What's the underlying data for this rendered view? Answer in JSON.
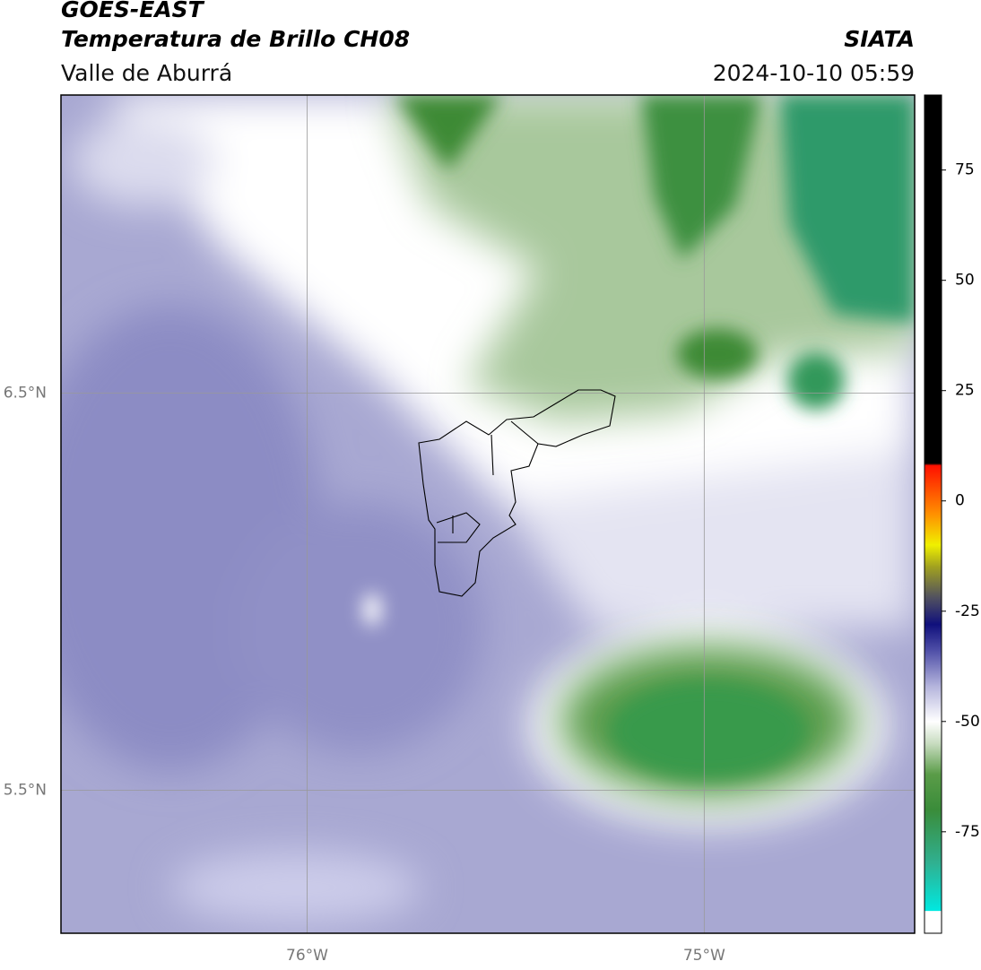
{
  "header": {
    "title": "GOES-EAST",
    "subtitle": "Temperatura de Brillo CH08",
    "region": "Valle de Aburrá",
    "source": "SIATA",
    "datetime": "2024-10-10 05:59"
  },
  "map": {
    "xlim": [
      -76.62,
      -74.47
    ],
    "ylim": [
      5.14,
      7.25
    ],
    "xticks": [
      {
        "value": -76,
        "label": "76°W"
      },
      {
        "value": -75,
        "label": "75°W"
      }
    ],
    "yticks": [
      {
        "value": 6.5,
        "label": "6.5°N"
      },
      {
        "value": 5.5,
        "label": "5.5°N"
      }
    ],
    "grid": true
  },
  "colorbar": {
    "lim": [
      -98,
      92
    ],
    "ticks": [
      75,
      50,
      25,
      0,
      -25,
      -50,
      -75
    ],
    "stops": [
      {
        "value": -98,
        "color": "#ffffff"
      },
      {
        "value": -93,
        "color": "#ffffff"
      },
      {
        "value": -92.9,
        "color": "#00e8e0"
      },
      {
        "value": -82,
        "color": "#30b090"
      },
      {
        "value": -70,
        "color": "#3a8c3a"
      },
      {
        "value": -62,
        "color": "#5a9c48"
      },
      {
        "value": -55,
        "color": "#c8dcc0"
      },
      {
        "value": -50,
        "color": "#ffffff"
      },
      {
        "value": -42,
        "color": "#b4b4dc"
      },
      {
        "value": -34,
        "color": "#5050a8"
      },
      {
        "value": -28,
        "color": "#10107c"
      },
      {
        "value": -22,
        "color": "#505060"
      },
      {
        "value": -15,
        "color": "#a0a020"
      },
      {
        "value": -10,
        "color": "#f0f000"
      },
      {
        "value": -3,
        "color": "#ff9000"
      },
      {
        "value": 8,
        "color": "#ff1000"
      },
      {
        "value": 8.5,
        "color": "#000000"
      },
      {
        "value": 92,
        "color": "#000000"
      }
    ]
  }
}
